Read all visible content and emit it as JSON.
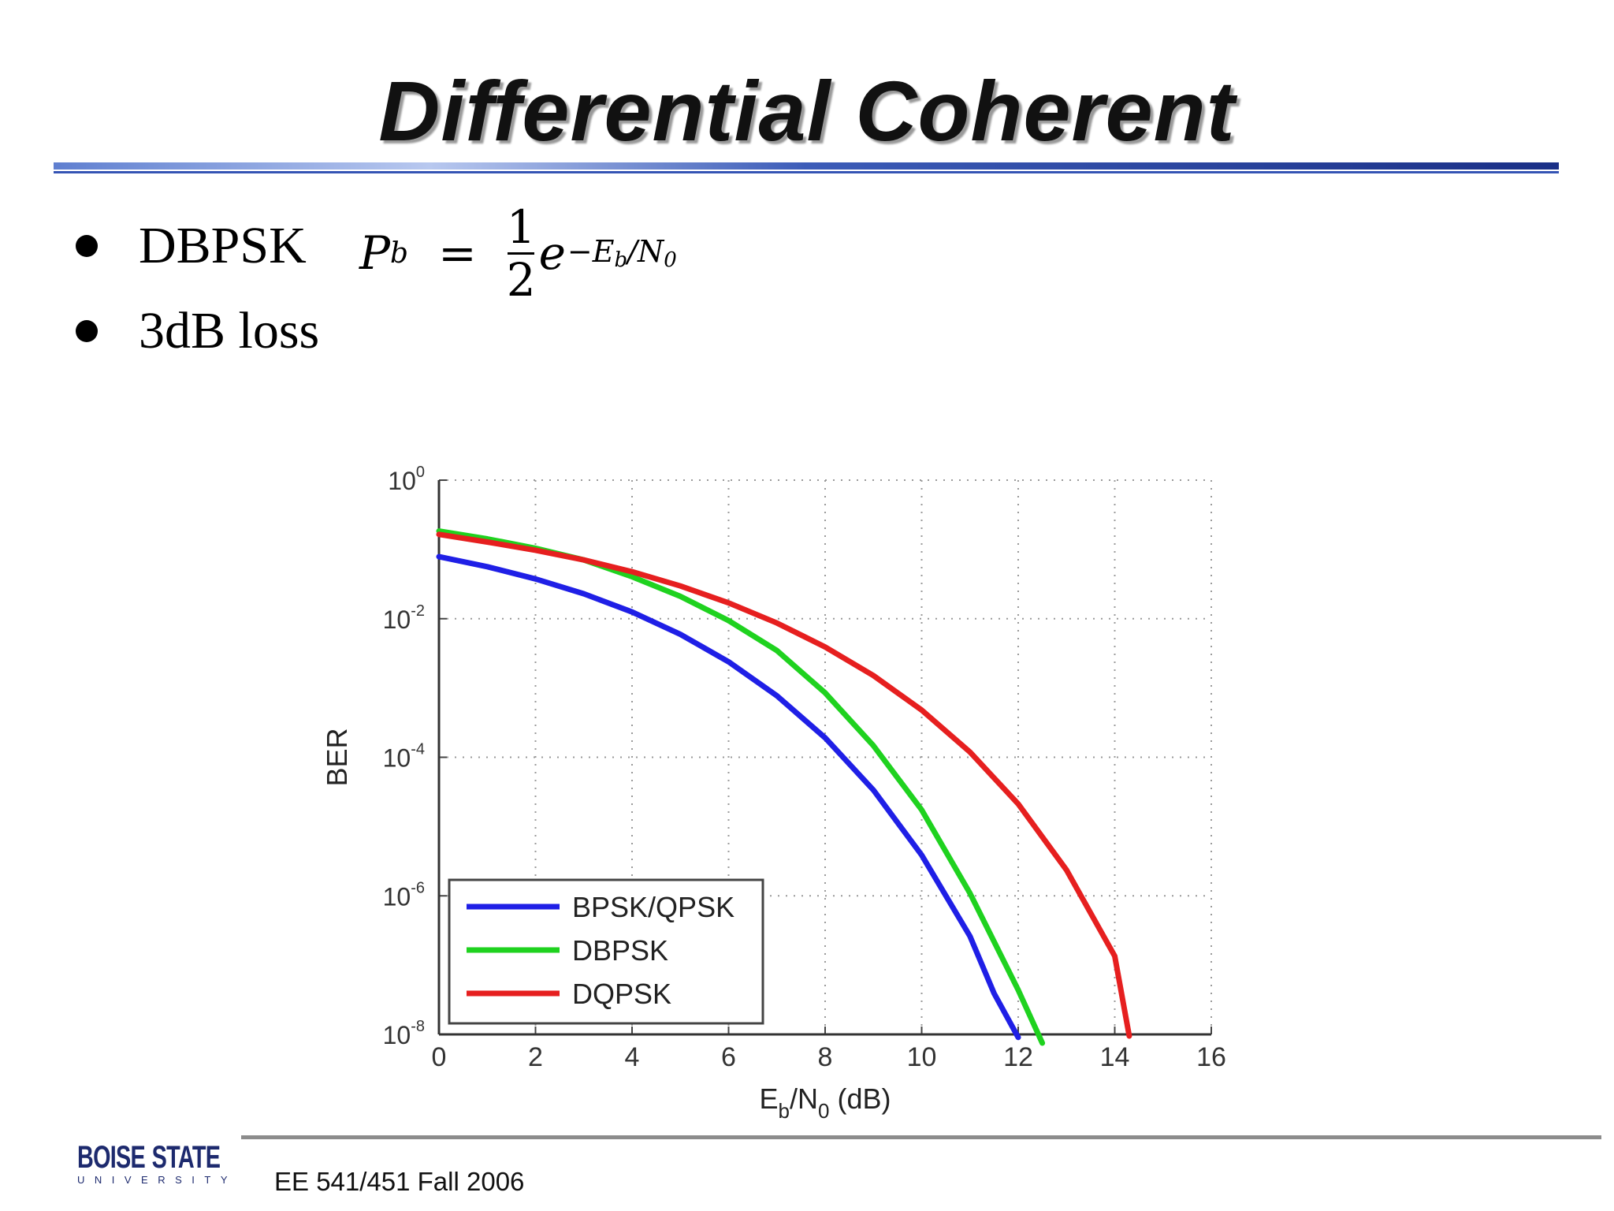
{
  "slide": {
    "title": "Differential Coherent",
    "bullets": [
      {
        "text": "DBPSK"
      },
      {
        "text": "3dB loss"
      }
    ],
    "formula": {
      "lhs": "P",
      "lhs_sub": "b",
      "equals": "=",
      "numerator": "1",
      "denominator": "2",
      "base": "e",
      "exponent": "−E_b/N_0"
    },
    "footer": "EE 541/451 Fall 2006",
    "logo": {
      "top_left": "BOISE",
      "top_right": "STATE",
      "bottom": "UNIVERSITY"
    },
    "colors": {
      "title_rule_dark": "#1f3a8a",
      "title_rule_light": "#9fb4e6",
      "footer_rule": "#8c8c8c"
    }
  },
  "chart_data": {
    "type": "line",
    "ylabel": "BER",
    "xlabel_main": "E",
    "xlabel_sub1": "b",
    "xlabel_mid": "/N",
    "xlabel_sub2": "0",
    "xlabel_tail": " (dB)",
    "xlim": [
      0,
      16
    ],
    "ylim": [
      1e-08,
      1
    ],
    "yscale": "log",
    "grid": true,
    "legend_position": "bottom-left",
    "x_ticks": [
      "0",
      "2",
      "4",
      "6",
      "8",
      "10",
      "12",
      "14",
      "16"
    ],
    "y_ticks": [
      {
        "base": "10",
        "exp": "0",
        "value": 1
      },
      {
        "base": "10",
        "exp": "-2",
        "value": 0.01
      },
      {
        "base": "10",
        "exp": "-4",
        "value": 0.0001
      },
      {
        "base": "10",
        "exp": "-6",
        "value": 1e-06
      },
      {
        "base": "10",
        "exp": "-8",
        "value": 1e-08
      }
    ],
    "series": [
      {
        "name": "BPSK/QPSK",
        "color": "#1f1fe6",
        "x": [
          0,
          1,
          2,
          3,
          4,
          5,
          6,
          7,
          8,
          9,
          10,
          11,
          11.5,
          12
        ],
        "y": [
          0.0786,
          0.0563,
          0.0375,
          0.0229,
          0.0125,
          0.00595,
          0.00239,
          0.000773,
          0.000191,
          3.36e-05,
          3.87e-06,
          2.61e-07,
          3.91e-08,
          9.05e-09
        ]
      },
      {
        "name": "DBPSK",
        "color": "#1fd21f",
        "x": [
          0,
          1,
          2,
          3,
          4,
          5,
          6,
          7,
          8,
          9,
          10,
          11,
          12,
          12.5
        ],
        "y": [
          0.184,
          0.142,
          0.104,
          0.0705,
          0.0404,
          0.021,
          0.00941,
          0.00347,
          0.000851,
          0.000147,
          1.74e-05,
          1.09e-06,
          4.37e-08,
          7.5e-09
        ]
      },
      {
        "name": "DQPSK",
        "color": "#e61f1f",
        "x": [
          0,
          1,
          2,
          3,
          4,
          5,
          6,
          7,
          8,
          9,
          10,
          11,
          12,
          13,
          14,
          14.3
        ],
        "y": [
          0.165,
          0.128,
          0.0974,
          0.0705,
          0.0477,
          0.0297,
          0.0169,
          0.00867,
          0.00391,
          0.00151,
          0.000481,
          0.000119,
          2.12e-05,
          2.36e-06,
          1.35e-07,
          9.5e-09
        ]
      }
    ]
  }
}
